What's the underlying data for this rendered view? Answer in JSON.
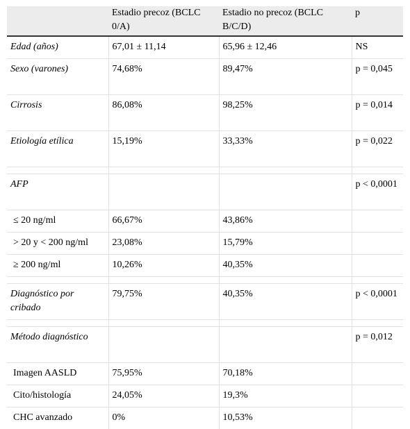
{
  "header": {
    "col1": "Estadio precoz (BCLC 0/A)",
    "col2": "Estadio no precoz (BCLC B/C/D)",
    "col3": "p"
  },
  "rows": [
    {
      "label": "Edad (años)",
      "a": "67,01 ± 11,14",
      "b": "65,96 ± 12,46",
      "p": "NS"
    },
    {
      "label": "Sexo (varones)",
      "a": "74,68%",
      "b": "89,47%",
      "p": "p = 0,045"
    },
    {
      "label": "Cirrosis",
      "a": "86,08%",
      "b": "98,25%",
      "p": "p = 0,014"
    },
    {
      "label": "Etiología etílica",
      "a": "15,19%",
      "b": "33,33%",
      "p": "p = 0,022"
    },
    {
      "label": "AFP",
      "a": "",
      "b": "",
      "p": "p < 0,0001"
    },
    {
      "label": "≤ 20 ng/ml",
      "a": "66,67%",
      "b": "43,86%",
      "p": ""
    },
    {
      "label": "> 20 y < 200 ng/ml",
      "a": "23,08%",
      "b": "15,79%",
      "p": ""
    },
    {
      "label": "≥ 200 ng/ml",
      "a": "10,26%",
      "b": "40,35%",
      "p": ""
    },
    {
      "label": "Diagnóstico por cribado",
      "a": "79,75%",
      "b": "40,35%",
      "p": "p < 0,0001"
    },
    {
      "label": "Método diagnóstico",
      "a": "",
      "b": "",
      "p": "p = 0,012"
    },
    {
      "label": "Imagen AASLD",
      "a": "75,95%",
      "b": "70,18%",
      "p": ""
    },
    {
      "label": "Cito/histología",
      "a": "24,05%",
      "b": "19,3%",
      "p": ""
    },
    {
      "label": "CHC avanzado",
      "a": "0%",
      "b": "10,53%",
      "p": ""
    }
  ]
}
